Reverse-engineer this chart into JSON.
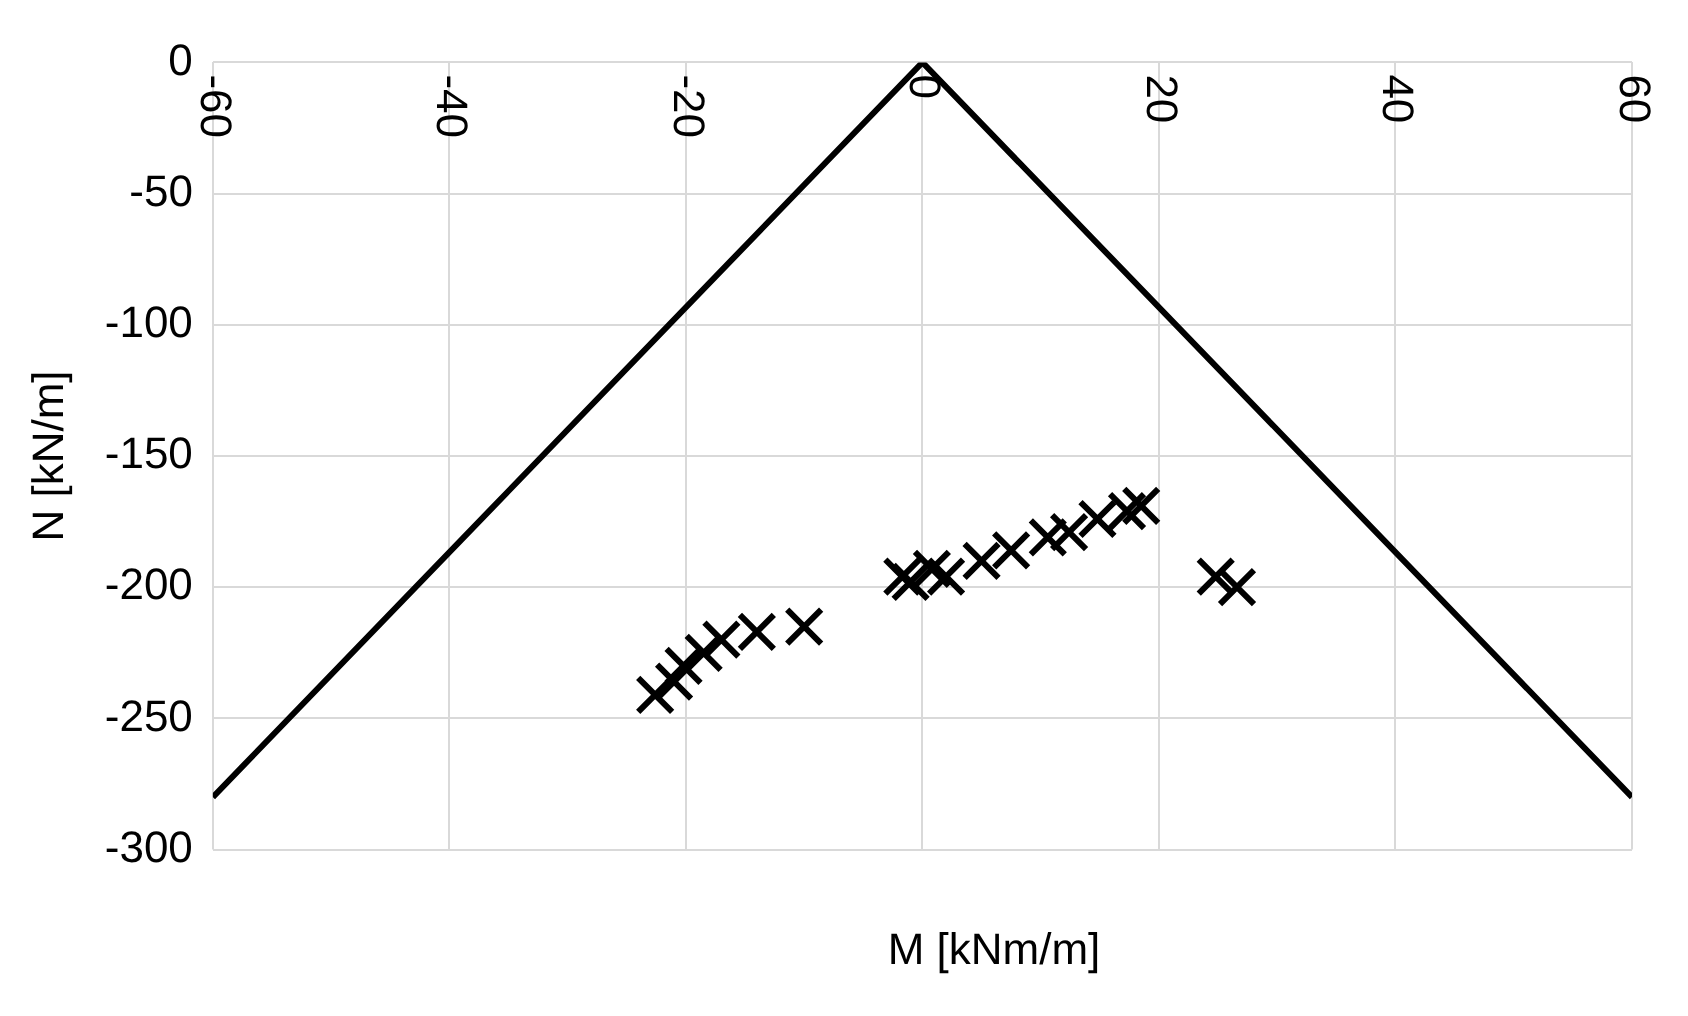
{
  "chart_data": {
    "type": "scatter",
    "xlabel": "M [kNm/m]",
    "ylabel": "N [kN/m]",
    "xlim": [
      -60,
      60
    ],
    "xticks": [
      -60,
      -40,
      -20,
      0,
      20,
      40,
      60
    ],
    "ylim": [
      -300,
      0
    ],
    "yticks": [
      -300,
      -250,
      -200,
      -150,
      -100,
      -50,
      0
    ],
    "grid": true,
    "legend": false,
    "marker": "cross",
    "series": [
      {
        "type": "line",
        "color": "#000000",
        "marker": "none",
        "x": [
          -60,
          0,
          60
        ],
        "values": [
          -280,
          0,
          -280
        ]
      },
      {
        "type": "scatter",
        "color": "#000000",
        "x": [
          -22.6,
          -21,
          -20.2,
          -18.5,
          -17,
          -14,
          -10,
          -1.7,
          -1,
          0.8,
          2,
          5,
          7.5,
          10.6,
          12.4,
          14.8,
          17.3,
          18.5,
          24.8,
          26.6
        ],
        "values": [
          -241,
          -236,
          -230,
          -225,
          -220,
          -217,
          -215,
          -196,
          -198,
          -193,
          -196,
          -190,
          -186,
          -181,
          -179,
          -174,
          -171,
          -169,
          -196,
          -200
        ]
      }
    ]
  }
}
